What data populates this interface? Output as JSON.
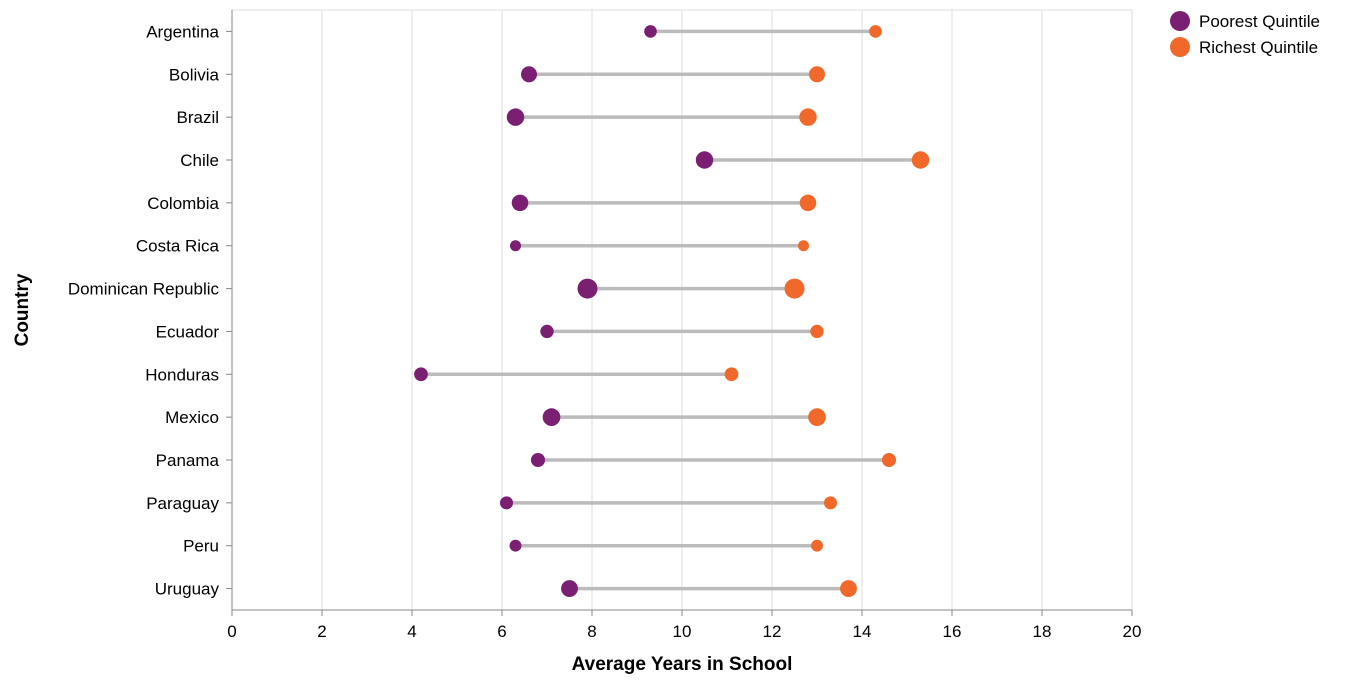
{
  "chart_data": {
    "type": "dumbbell",
    "xlabel": "Average Years in School",
    "ylabel": "Country",
    "xlim": [
      0,
      20
    ],
    "x_ticks": [
      0,
      2,
      4,
      6,
      8,
      10,
      12,
      14,
      16,
      18,
      20
    ],
    "grid": true,
    "legend_position": "top-right",
    "colors": {
      "poorest": "#7b1f73",
      "richest": "#f0692a",
      "connector": "#bbbbbb",
      "grid": "#dddddd",
      "axis": "#888888"
    },
    "series": [
      {
        "name": "Poorest Quintile",
        "color": "#7b1f73"
      },
      {
        "name": "Richest Quintile",
        "color": "#f0692a"
      }
    ],
    "categories": [
      "Argentina",
      "Bolivia",
      "Brazil",
      "Chile",
      "Colombia",
      "Costa Rica",
      "Dominican Republic",
      "Ecuador",
      "Honduras",
      "Mexico",
      "Panama",
      "Paraguay",
      "Peru",
      "Uruguay"
    ],
    "rows": [
      {
        "country": "Argentina",
        "poorest": 9.3,
        "richest": 14.3,
        "size": 1
      },
      {
        "country": "Bolivia",
        "poorest": 6.6,
        "richest": 13.0,
        "size": 2
      },
      {
        "country": "Brazil",
        "poorest": 6.3,
        "richest": 12.8,
        "size": 2.5
      },
      {
        "country": "Chile",
        "poorest": 10.5,
        "richest": 15.3,
        "size": 2.5
      },
      {
        "country": "Colombia",
        "poorest": 6.4,
        "richest": 12.8,
        "size": 2.2
      },
      {
        "country": "Costa Rica",
        "poorest": 6.3,
        "richest": 12.7,
        "size": 0.6
      },
      {
        "country": "Dominican Republic",
        "poorest": 7.9,
        "richest": 12.5,
        "size": 3.5
      },
      {
        "country": "Ecuador",
        "poorest": 7.0,
        "richest": 13.0,
        "size": 1.2
      },
      {
        "country": "Honduras",
        "poorest": 4.2,
        "richest": 11.1,
        "size": 1.3
      },
      {
        "country": "Mexico",
        "poorest": 7.1,
        "richest": 13.0,
        "size": 2.6
      },
      {
        "country": "Panama",
        "poorest": 6.8,
        "richest": 14.6,
        "size": 1.4
      },
      {
        "country": "Paraguay",
        "poorest": 6.1,
        "richest": 13.3,
        "size": 1.1
      },
      {
        "country": "Peru",
        "poorest": 6.3,
        "richest": 13.0,
        "size": 0.8
      },
      {
        "country": "Uruguay",
        "poorest": 7.5,
        "richest": 13.7,
        "size": 2.3
      }
    ]
  }
}
